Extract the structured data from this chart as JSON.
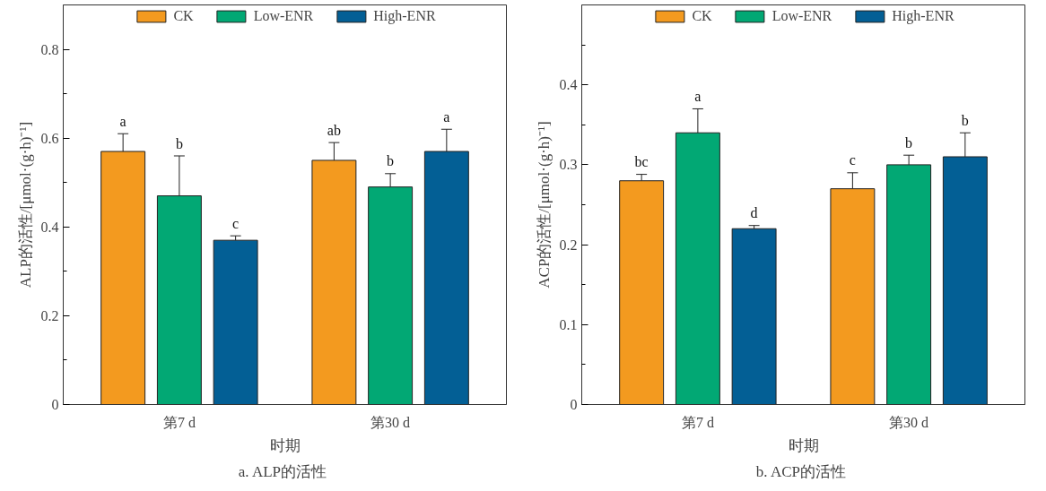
{
  "chart_data": [
    {
      "type": "bar",
      "title": "a.  ALP的活性",
      "xlabel": "时期",
      "ylabel": "ALP的活性/[μmol·(g·h)⁻¹]",
      "categories": [
        "第7 d",
        "第30 d"
      ],
      "series": [
        {
          "name": "CK",
          "color": "#f39a1f",
          "values": [
            0.57,
            0.55
          ],
          "errors": [
            0.04,
            0.04
          ],
          "value_labels": [
            "a",
            "ab"
          ]
        },
        {
          "name": "Low-ENR",
          "color": "#02a874",
          "values": [
            0.47,
            0.49
          ],
          "errors": [
            0.09,
            0.03
          ],
          "value_labels": [
            "b",
            "b"
          ]
        },
        {
          "name": "High-ENR",
          "color": "#035f95",
          "values": [
            0.37,
            0.57
          ],
          "errors": [
            0.01,
            0.05
          ],
          "value_labels": [
            "c",
            "a"
          ]
        }
      ],
      "ylim": [
        0,
        0.9
      ],
      "yticks": [
        0,
        {
          "value": 0.1,
          "label": null
        },
        0.2,
        {
          "value": 0.3,
          "label": null
        },
        0.4,
        {
          "value": 0.5,
          "label": null
        },
        0.6,
        {
          "value": 0.7,
          "label": null
        },
        0.8
      ],
      "legend": "top",
      "grid": false
    },
    {
      "type": "bar",
      "title": "b.  ACP的活性",
      "xlabel": "时期",
      "ylabel": "ACP的活性/[μmol·(g·h)⁻¹]",
      "categories": [
        "第7 d",
        "第30 d"
      ],
      "series": [
        {
          "name": "CK",
          "color": "#f39a1f",
          "values": [
            0.28,
            0.27
          ],
          "errors": [
            0.008,
            0.02
          ],
          "value_labels": [
            "bc",
            "c"
          ]
        },
        {
          "name": "Low-ENR",
          "color": "#02a874",
          "values": [
            0.34,
            0.3
          ],
          "errors": [
            0.03,
            0.012
          ],
          "value_labels": [
            "a",
            "b"
          ]
        },
        {
          "name": "High-ENR",
          "color": "#035f95",
          "values": [
            0.22,
            0.31
          ],
          "errors": [
            0.004,
            0.03
          ],
          "value_labels": [
            "d",
            "b"
          ]
        }
      ],
      "ylim": [
        0,
        0.5
      ],
      "yticks": [
        0,
        {
          "value": 0.05,
          "label": null
        },
        0.1,
        {
          "value": 0.15,
          "label": null
        },
        0.2,
        {
          "value": 0.25,
          "label": null
        },
        0.3,
        {
          "value": 0.35,
          "label": null
        },
        0.4,
        {
          "value": 0.45,
          "label": null
        }
      ],
      "legend": "top",
      "grid": false
    }
  ]
}
